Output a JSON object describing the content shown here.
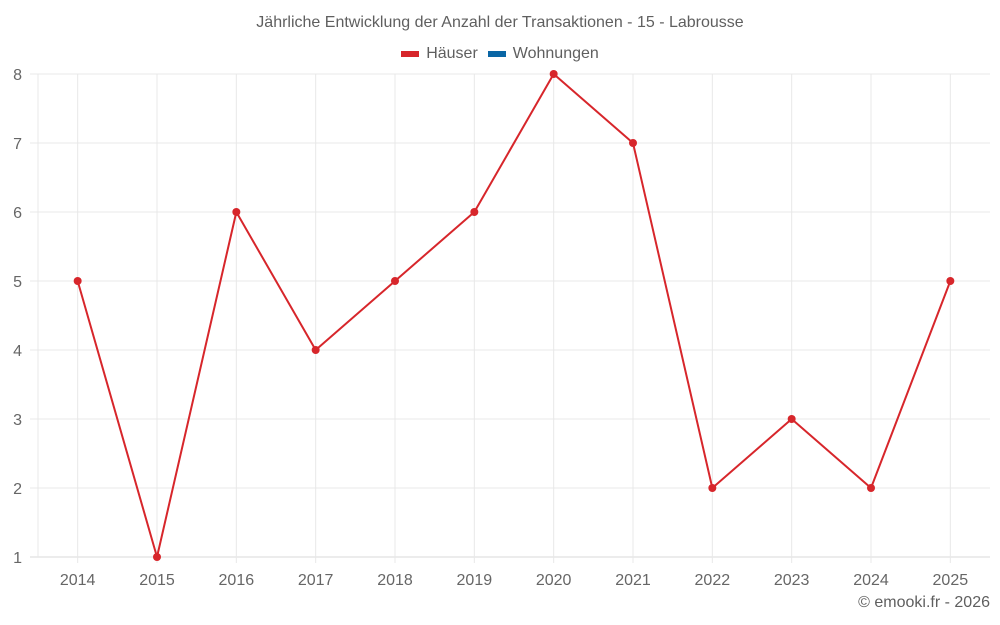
{
  "title": "Jährliche Entwicklung der Anzahl der Transaktionen - 15 - Labrousse",
  "legend": [
    {
      "label": "Häuser",
      "color": "#d7262b"
    },
    {
      "label": "Wohnungen",
      "color": "#0a66a5"
    }
  ],
  "footer": "© emooki.fr - 2026",
  "colors": {
    "grid": "#e8e8e8",
    "axis": "#d9d9d9",
    "line": "#d7262b"
  },
  "chart_data": {
    "type": "line",
    "title": "Jährliche Entwicklung der Anzahl der Transaktionen - 15 - Labrousse",
    "xlabel": "",
    "ylabel": "",
    "categories": [
      "2014",
      "2015",
      "2016",
      "2017",
      "2018",
      "2019",
      "2020",
      "2021",
      "2022",
      "2023",
      "2024",
      "2025"
    ],
    "series": [
      {
        "name": "Häuser",
        "color": "#d7262b",
        "values": [
          5,
          1,
          6,
          4,
          5,
          6,
          8,
          7,
          2,
          3,
          2,
          5
        ]
      },
      {
        "name": "Wohnungen",
        "color": "#0a66a5",
        "values": []
      }
    ],
    "ylim": [
      1,
      8
    ],
    "yticks": [
      "1",
      "2",
      "3",
      "4",
      "5",
      "6",
      "7",
      "8"
    ],
    "grid": true,
    "legend_position": "top"
  }
}
